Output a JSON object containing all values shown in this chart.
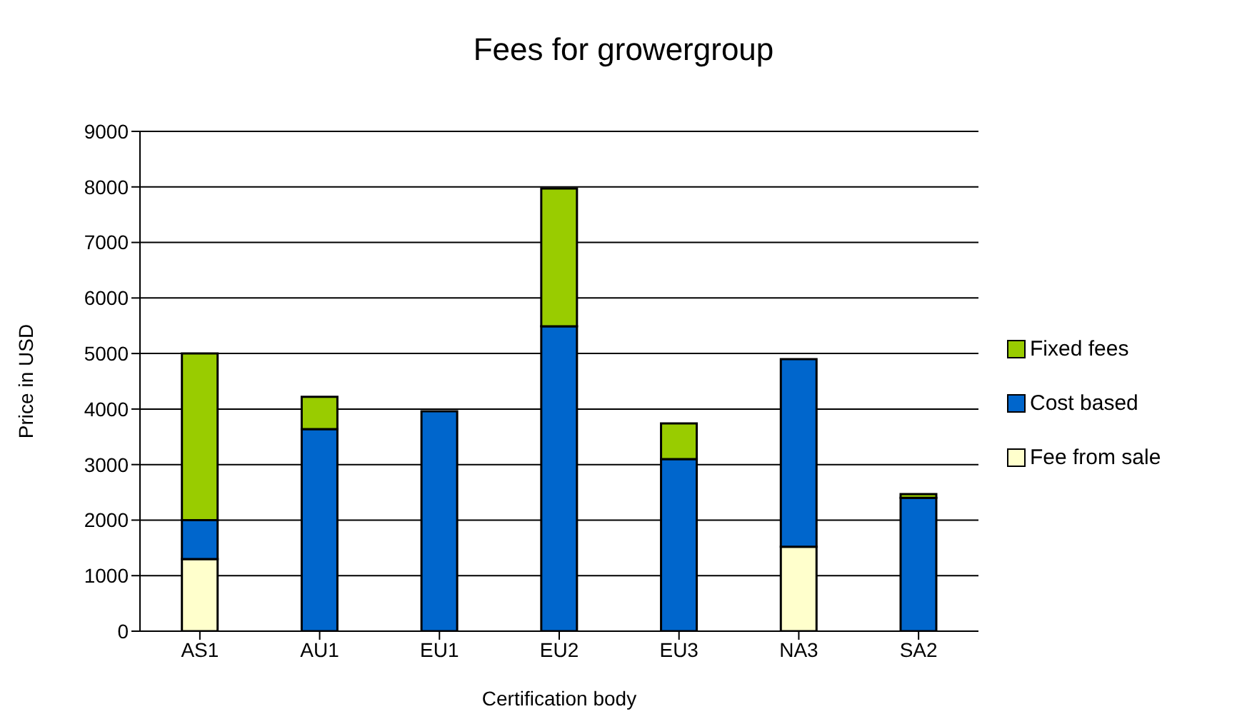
{
  "chart_data": {
    "type": "bar",
    "title": "Fees for growergroup",
    "xlabel": "Certification body",
    "ylabel": "Price in USD",
    "categories": [
      "AS1",
      "AU1",
      "EU1",
      "EU2",
      "EU3",
      "NA3",
      "SA2"
    ],
    "series": [
      {
        "name": "Fee from sale",
        "color": "#ffffcc",
        "values": [
          1300,
          0,
          0,
          0,
          0,
          1520,
          0
        ]
      },
      {
        "name": "Cost based",
        "color": "#0066cc",
        "values": [
          700,
          3640,
          3960,
          5490,
          3100,
          3380,
          2400
        ]
      },
      {
        "name": "Fixed fees",
        "color": "#99cc00",
        "values": [
          3000,
          580,
          0,
          2480,
          640,
          0,
          70
        ]
      }
    ],
    "stacked": true,
    "ylim": [
      0,
      9000
    ],
    "yticks": [
      0,
      1000,
      2000,
      3000,
      4000,
      5000,
      6000,
      7000,
      8000,
      9000
    ],
    "grid": "y",
    "legend": "right"
  }
}
